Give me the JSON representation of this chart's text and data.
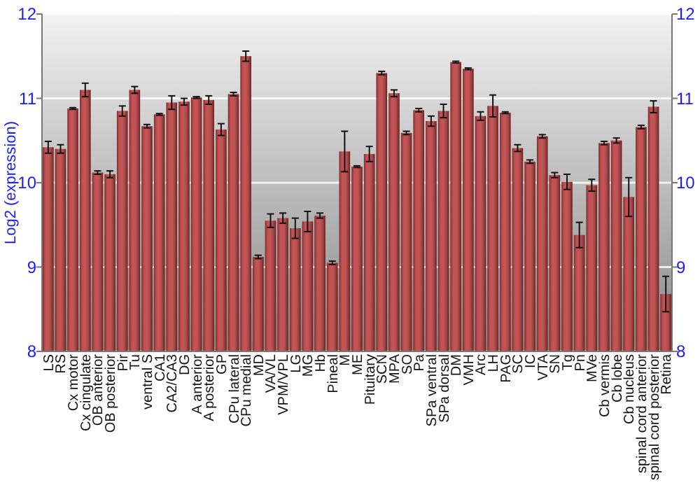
{
  "chart_data": {
    "type": "bar",
    "ylabel": "Log2 (expression)",
    "categories": [
      "LS",
      "RS",
      "Cx motor",
      "Cx cingulate",
      "OB anterior",
      "OB posterior",
      "Pir",
      "Tu",
      "ventral S",
      "CA1",
      "CA2/CA3",
      "DG",
      "A anterior",
      "A posterior",
      "GP",
      "CPu lateral",
      "CPu medial",
      "MD",
      "VA/VL",
      "VPM/VPL",
      "LG",
      "MG",
      "Hb",
      "Pineal",
      "M",
      "ME",
      "Pituitary",
      "SCN",
      "MPA",
      "SO",
      "Pa",
      "SPa ventral",
      "SPa dorsal",
      "DM",
      "VMH",
      "Arc",
      "LH",
      "PAG",
      "SC",
      "IC",
      "VTA",
      "SN",
      "Tg",
      "Pn",
      "MVe",
      "Cb vermis",
      "Cb lobe",
      "Cb nucleus",
      "spinal cord anterior",
      "spinal cord posterior",
      "Retina"
    ],
    "values": [
      10.42,
      10.4,
      10.88,
      11.1,
      10.12,
      10.1,
      10.85,
      11.1,
      10.67,
      10.81,
      10.95,
      10.96,
      11.01,
      10.98,
      10.63,
      11.05,
      11.5,
      9.12,
      9.55,
      9.58,
      9.46,
      9.54,
      9.61,
      9.05,
      10.37,
      10.19,
      10.34,
      11.3,
      11.06,
      10.59,
      10.86,
      10.73,
      10.85,
      11.43,
      11.35,
      10.79,
      10.91,
      10.83,
      10.41,
      10.25,
      10.55,
      10.09,
      10.01,
      9.38,
      9.97,
      10.47,
      10.5,
      9.83,
      10.66,
      10.9,
      8.68
    ],
    "errors": [
      0.07,
      0.05,
      0.01,
      0.08,
      0.02,
      0.04,
      0.06,
      0.04,
      0.02,
      0.01,
      0.08,
      0.04,
      0.01,
      0.05,
      0.07,
      0.02,
      0.06,
      0.02,
      0.08,
      0.06,
      0.12,
      0.12,
      0.03,
      0.02,
      0.24,
      0.01,
      0.09,
      0.02,
      0.04,
      0.02,
      0.02,
      0.06,
      0.08,
      0.01,
      0.01,
      0.05,
      0.13,
      0.01,
      0.04,
      0.02,
      0.02,
      0.03,
      0.09,
      0.15,
      0.07,
      0.02,
      0.03,
      0.23,
      0.02,
      0.07,
      0.21
    ],
    "color": "#c0393b",
    "ylim": [
      8,
      12
    ],
    "yticks": [
      8,
      9,
      10,
      11,
      12
    ],
    "y2lim": [
      8,
      12
    ],
    "y2ticks": [
      8,
      9,
      10,
      11,
      12
    ],
    "grid": "y"
  }
}
